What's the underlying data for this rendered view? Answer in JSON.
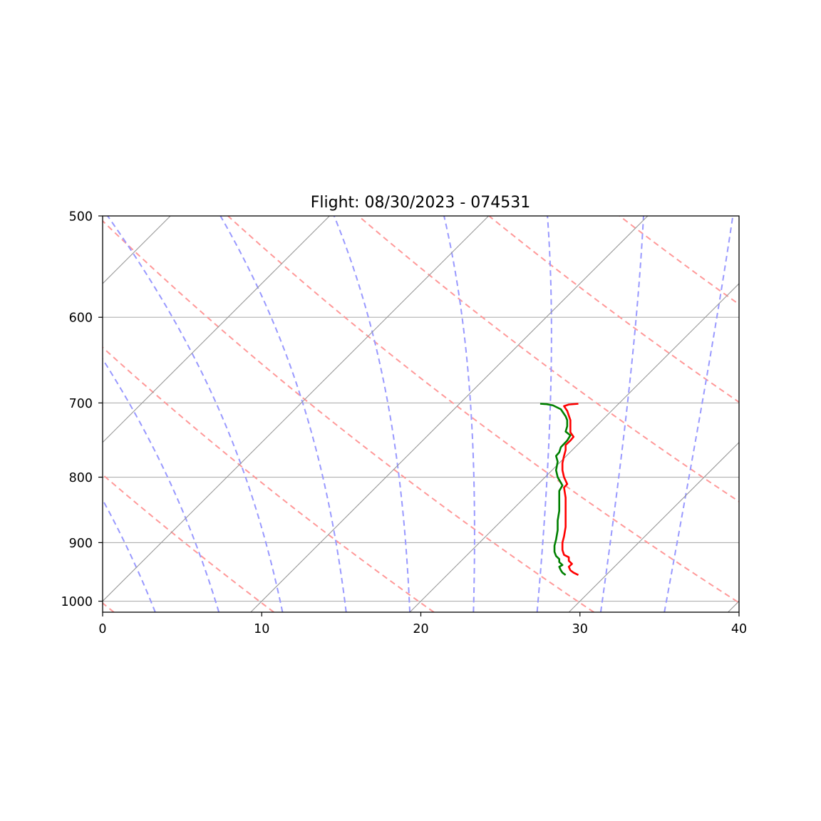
{
  "chart_data": {
    "type": "line",
    "title": "Flight: 08/30/2023 - 074531",
    "xlabel": "",
    "ylabel": "",
    "xlim": [
      0,
      40
    ],
    "ylim": [
      1020,
      500
    ],
    "y_scale": "log",
    "grid": "horizontal at pressure ticks",
    "x_ticks": [
      "0",
      "10",
      "20",
      "30",
      "40"
    ],
    "y_ticks": [
      "500",
      "600",
      "700",
      "800",
      "900",
      "1000"
    ],
    "x_tick_values": [
      0,
      10,
      20,
      30,
      40
    ],
    "y_tick_values": [
      500,
      600,
      700,
      800,
      900,
      1000
    ],
    "colors": {
      "temperature": "#ff0000",
      "dewpoint": "#008000",
      "dry_adiabats": "#ff9999",
      "moist_adiabats": "#9999ff",
      "isotherms": "#999999",
      "grid": "#b0b0b0"
    },
    "series": [
      {
        "color": "#ff0000",
        "points": [
          [
            29.9,
            954
          ],
          [
            29.6,
            950
          ],
          [
            29.4,
            946
          ],
          [
            29.3,
            940
          ],
          [
            29.5,
            935
          ],
          [
            29.3,
            930
          ],
          [
            29.3,
            924
          ],
          [
            29.0,
            920
          ],
          [
            28.9,
            912
          ],
          [
            28.9,
            900
          ],
          [
            29.0,
            890
          ],
          [
            29.1,
            875
          ],
          [
            29.1,
            860
          ],
          [
            29.1,
            845
          ],
          [
            29.1,
            830
          ],
          [
            29.0,
            815
          ],
          [
            29.2,
            810
          ],
          [
            29.0,
            800
          ],
          [
            28.9,
            790
          ],
          [
            28.9,
            780
          ],
          [
            29.0,
            770
          ],
          [
            29.1,
            762
          ],
          [
            29.1,
            755
          ],
          [
            29.4,
            749
          ],
          [
            29.6,
            744
          ],
          [
            29.4,
            738
          ],
          [
            29.4,
            730
          ],
          [
            29.4,
            722
          ],
          [
            29.3,
            716
          ],
          [
            29.2,
            710
          ],
          [
            29.0,
            704
          ],
          [
            29.3,
            702
          ],
          [
            29.9,
            701
          ]
        ]
      },
      {
        "color": "#008000",
        "points": [
          [
            29.1,
            954
          ],
          [
            28.9,
            950
          ],
          [
            28.8,
            946
          ],
          [
            28.7,
            940
          ],
          [
            28.9,
            937
          ],
          [
            28.7,
            932
          ],
          [
            28.7,
            927
          ],
          [
            28.5,
            922
          ],
          [
            28.4,
            915
          ],
          [
            28.4,
            905
          ],
          [
            28.5,
            895
          ],
          [
            28.6,
            880
          ],
          [
            28.6,
            865
          ],
          [
            28.7,
            850
          ],
          [
            28.7,
            835
          ],
          [
            28.7,
            820
          ],
          [
            28.9,
            812
          ],
          [
            28.6,
            800
          ],
          [
            28.5,
            790
          ],
          [
            28.6,
            778
          ],
          [
            28.5,
            770
          ],
          [
            28.7,
            765
          ],
          [
            28.8,
            758
          ],
          [
            29.2,
            749
          ],
          [
            29.4,
            742
          ],
          [
            29.1,
            737
          ],
          [
            29.2,
            730
          ],
          [
            29.2,
            722
          ],
          [
            29.1,
            717
          ],
          [
            28.8,
            708
          ],
          [
            28.3,
            703
          ],
          [
            27.9,
            701.5
          ],
          [
            27.5,
            701
          ]
        ]
      }
    ]
  }
}
